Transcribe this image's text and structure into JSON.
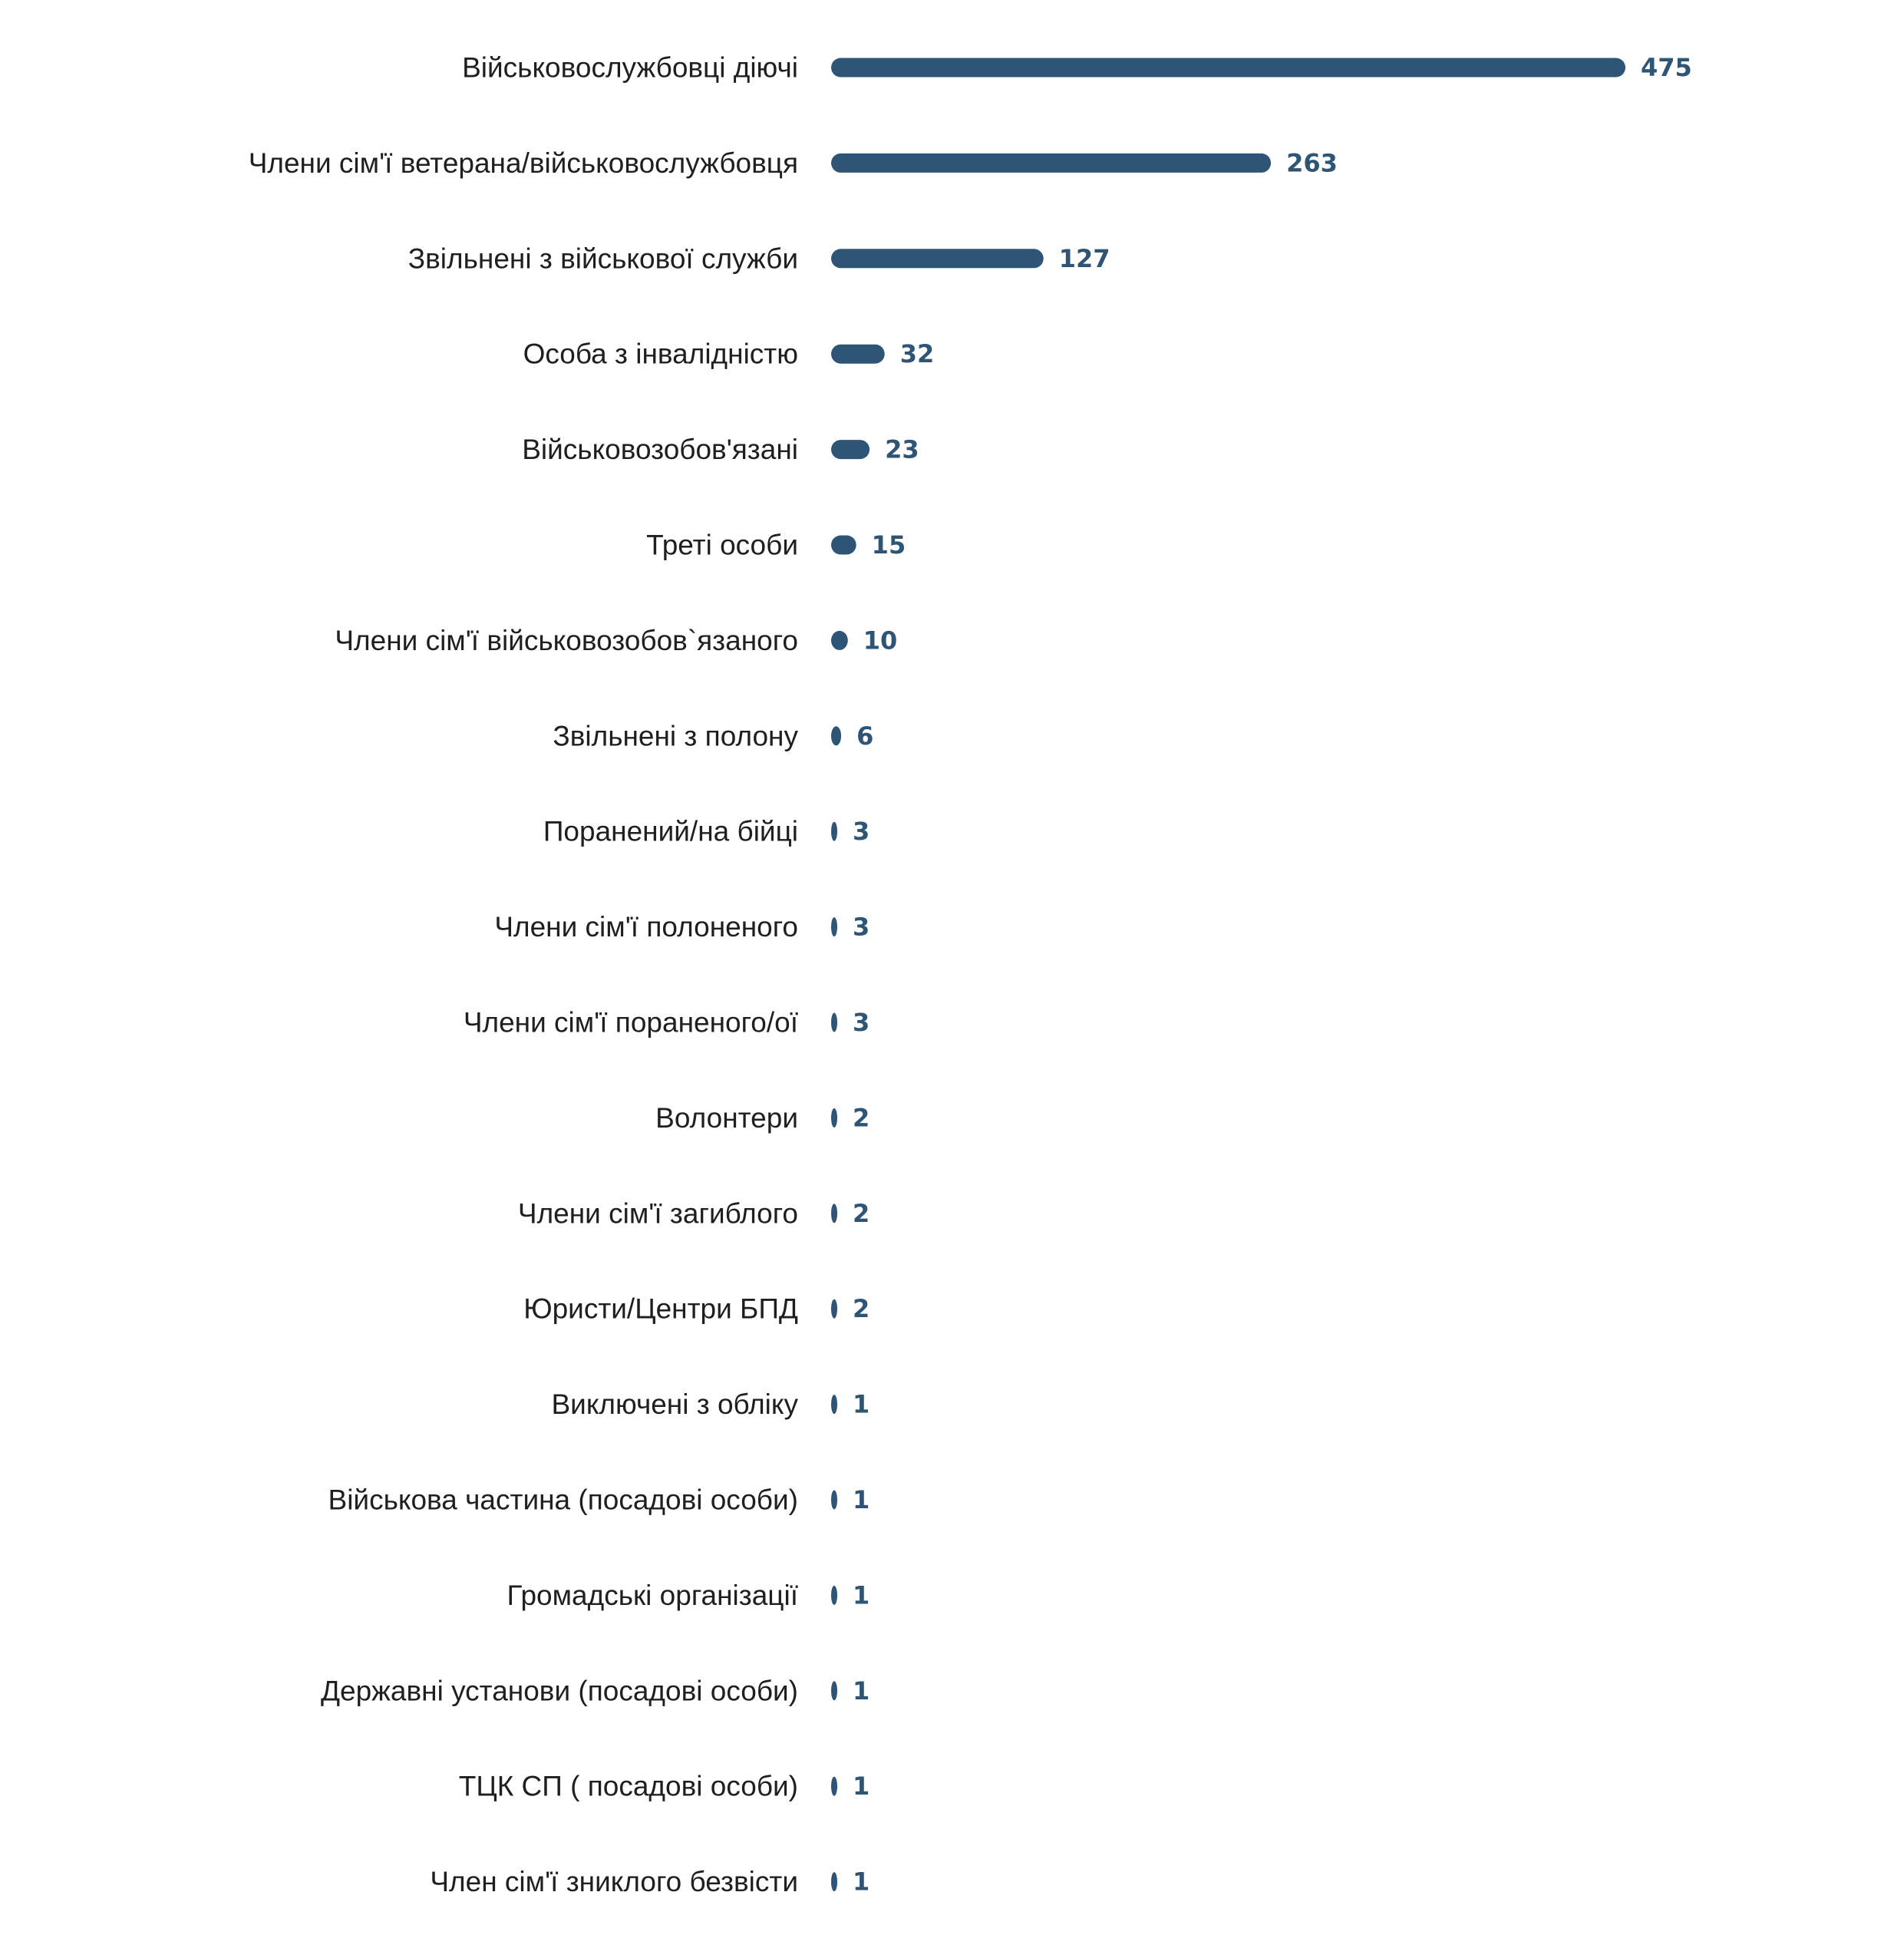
{
  "chart_data": {
    "type": "bar",
    "orientation": "horizontal",
    "categories": [
      "Військовослужбовці діючі",
      "Члени сім'ї ветерана/військовослужбовця",
      "Звільнені з військової служби",
      "Особа з інвалідністю",
      "Військовозобов'язані",
      "Треті особи",
      "Члени сім'ї військовозобов`язаного",
      "Звільнені з полону",
      "Поранений/на бійці",
      "Члени сім'ї полоненого",
      "Члени сім'ї пораненого/ої",
      "Волонтери",
      "Члени сім'ї загиблого",
      "Юристи/Центри БПД",
      "Виключені з обліку",
      "Військова частина (посадові особи)",
      "Громадські організації",
      "Державні установи (посадові особи)",
      "ТЦК СП ( посадові особи)",
      "Член сім'ї зниклого безвісти"
    ],
    "values": [
      475,
      263,
      127,
      32,
      23,
      15,
      10,
      6,
      3,
      3,
      3,
      2,
      2,
      2,
      1,
      1,
      1,
      1,
      1,
      1
    ],
    "value_labels": [
      "475",
      "263",
      "127",
      "32",
      "23",
      "15",
      "10",
      "6",
      "3",
      "3",
      "3",
      "2",
      "2",
      "2",
      "1",
      "1",
      "1",
      "1",
      "1",
      "1"
    ],
    "xlim": [
      0,
      475
    ],
    "title": "",
    "xlabel": "",
    "ylabel": "",
    "grid": false,
    "legend": "none",
    "color": "#2e5575"
  }
}
